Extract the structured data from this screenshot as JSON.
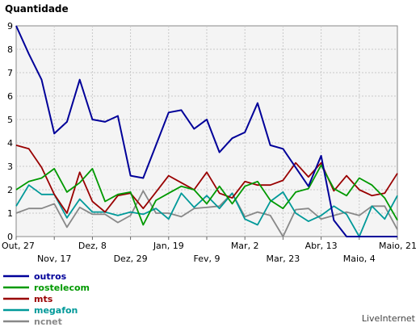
{
  "chart_data": {
    "type": "line",
    "title": "Quantidade",
    "ylim": [
      0,
      9
    ],
    "yticks": [
      "0",
      "1",
      "2",
      "3",
      "4",
      "5",
      "6",
      "7",
      "8",
      "9"
    ],
    "x_top_labels": [
      "Out, 27",
      "Dez, 8",
      "Jan, 19",
      "Mar, 2",
      "Abr, 13",
      "Maio, 21"
    ],
    "x_top_index": [
      0,
      6,
      12,
      18,
      24,
      30
    ],
    "x_bottom_labels": [
      "Nov, 17",
      "Dez, 29",
      "Fev, 9",
      "Mar, 23",
      "Maio, 4"
    ],
    "x_bottom_index": [
      3,
      9,
      15,
      21,
      27
    ],
    "grid": true,
    "legend_position": "bottom-left",
    "series": [
      {
        "name": "outros",
        "color": "#000099",
        "values": [
          9.0,
          7.8,
          6.7,
          4.4,
          4.9,
          6.7,
          5.0,
          4.9,
          5.15,
          2.6,
          2.5,
          3.9,
          5.3,
          5.4,
          4.6,
          5.0,
          3.6,
          4.2,
          4.45,
          5.7,
          3.9,
          3.75,
          2.95,
          2.15,
          3.45,
          0.7,
          0.0,
          0.0,
          0.0,
          0.0,
          0.0
        ]
      },
      {
        "name": "rostelecom",
        "color": "#009900",
        "values": [
          2.0,
          2.35,
          2.5,
          2.9,
          1.9,
          2.3,
          2.9,
          1.5,
          1.8,
          1.9,
          0.5,
          1.55,
          1.85,
          2.15,
          2.0,
          1.4,
          2.15,
          1.4,
          2.15,
          2.35,
          1.55,
          1.2,
          1.9,
          2.05,
          3.05,
          2.05,
          1.75,
          2.5,
          2.2,
          1.65,
          0.7
        ]
      },
      {
        "name": "mts",
        "color": "#990000",
        "values": [
          3.9,
          3.75,
          2.95,
          1.8,
          1.0,
          2.75,
          1.5,
          1.05,
          1.75,
          1.85,
          1.2,
          1.9,
          2.6,
          2.3,
          2.0,
          2.75,
          1.85,
          1.65,
          2.35,
          2.2,
          2.2,
          2.4,
          3.15,
          2.55,
          3.15,
          1.95,
          2.6,
          2.0,
          1.75,
          1.85,
          2.7
        ]
      },
      {
        "name": "megafon",
        "color": "#009999",
        "values": [
          1.3,
          2.2,
          1.8,
          1.8,
          0.8,
          1.6,
          1.05,
          1.05,
          0.9,
          1.05,
          0.95,
          1.2,
          0.75,
          1.85,
          1.25,
          1.75,
          1.2,
          1.85,
          0.75,
          0.5,
          1.5,
          1.9,
          1.0,
          0.65,
          0.9,
          1.3,
          0.95,
          0.0,
          1.3,
          0.75,
          1.75
        ]
      },
      {
        "name": "ncnet",
        "color": "#888888",
        "values": [
          1.0,
          1.2,
          1.2,
          1.4,
          0.4,
          1.25,
          0.95,
          0.95,
          0.6,
          0.9,
          1.95,
          1.0,
          1.0,
          0.85,
          1.2,
          1.25,
          1.3,
          1.85,
          0.85,
          1.05,
          0.9,
          0.0,
          1.15,
          1.2,
          0.75,
          0.9,
          1.05,
          0.9,
          1.3,
          1.3,
          0.3
        ]
      }
    ]
  },
  "brand": "LiveInternet"
}
